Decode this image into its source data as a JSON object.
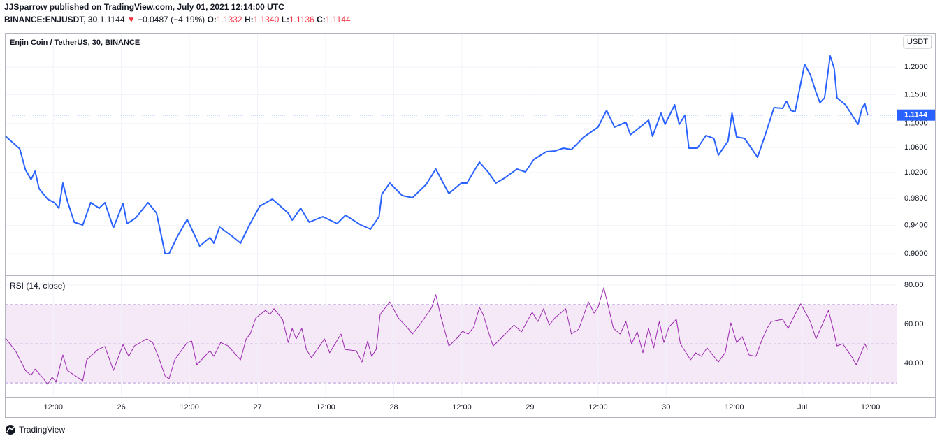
{
  "header": {
    "line1": "JJSparrow published on TradingView.com, July 01, 2021 12:14:00 UTC",
    "symbol": "BINANCE:ENJUSDT, 30",
    "last": "1.1144",
    "arrow": "▼",
    "change": "−0.0487 (−4.19%)",
    "ohlc": [
      {
        "label": "O:",
        "value": "1.1332"
      },
      {
        "label": "H:",
        "value": "1.1340"
      },
      {
        "label": "L:",
        "value": "1.1136"
      },
      {
        "label": "C:",
        "value": "1.1144"
      }
    ]
  },
  "footer": {
    "brand": "TradingView"
  },
  "chart_data": [
    {
      "type": "line",
      "title": "Enjin Coin / TetherUS, 30, BINANCE",
      "currency": "USDT",
      "color": "#2962ff",
      "log": true,
      "grid": true,
      "last": 1.1144,
      "x": [
        3.6,
        6.1,
        7.1,
        8.1,
        8.8,
        9.5,
        11.0,
        12.2,
        13.0,
        13.7,
        14.5,
        15.7,
        17.2,
        18.6,
        20.1,
        21.1,
        22.6,
        24.3,
        25.0,
        26.5,
        28.7,
        30.2,
        31.7,
        32.4,
        33.9,
        35.6,
        37.8,
        39.6,
        40.3,
        41.3,
        43.5,
        45.0,
        46.7,
        48.4,
        50.6,
        51.6,
        53.4,
        54.1,
        55.6,
        57.1,
        59.5,
        62.0,
        63.5,
        66.2,
        67.9,
        69.4,
        69.9,
        71.3,
        73.5,
        75.3,
        77.7,
        79.4,
        81.7,
        83.9,
        84.9,
        87.1,
        88.6,
        90.0,
        91.5,
        93.7,
        95.2,
        96.7,
        98.9,
        100.4,
        101.9,
        103.3,
        105.5,
        108.0,
        109.5,
        110.9,
        112.9,
        113.7,
        115.4,
        116.9,
        117.6,
        119.1,
        119.8,
        121.5,
        122.3,
        123.3,
        124.0,
        125.5,
        127.0,
        128.4,
        129.2,
        130.9,
        131.6,
        132.4,
        133.8,
        136.1,
        137.5,
        139.0,
        140.5,
        141.2,
        142.0,
        142.7,
        144.4,
        145.4,
        146.4,
        147.1,
        147.9,
        148.9,
        149.6,
        150.1,
        151.6,
        153.8,
        154.5,
        155.0,
        155.5
      ],
      "values": [
        1.0786,
        1.0579,
        1.0242,
        1.0089,
        1.022,
        0.9949,
        0.9789,
        0.9737,
        0.9653,
        1.0035,
        0.9758,
        0.9447,
        0.9407,
        0.9737,
        0.9653,
        0.9737,
        0.9366,
        0.9726,
        0.9427,
        0.9508,
        0.9737,
        0.9581,
        0.9,
        0.9,
        0.9246,
        0.9488,
        0.9107,
        0.9226,
        0.9147,
        0.9376,
        0.9246,
        0.9147,
        0.9427,
        0.9684,
        0.9789,
        0.9716,
        0.9581,
        0.9478,
        0.9653,
        0.9447,
        0.9529,
        0.9427,
        0.955,
        0.9407,
        0.9346,
        0.9529,
        0.9863,
        1.0035,
        0.9842,
        0.981,
        1.0013,
        1.0254,
        0.9874,
        1.0035,
        1.0035,
        1.0365,
        1.0209,
        1.0035,
        1.0111,
        1.0254,
        1.0209,
        1.0409,
        1.0533,
        1.0544,
        1.059,
        1.0568,
        1.0775,
        1.0938,
        1.1225,
        1.0938,
        1.1021,
        1.081,
        1.0938,
        1.1057,
        1.0786,
        1.1177,
        1.0986,
        1.1322,
        1.0986,
        1.1141,
        1.059,
        1.059,
        1.0797,
        1.0751,
        1.0477,
        1.0705,
        1.1177,
        1.0775,
        1.0751,
        1.0443,
        1.0822,
        1.1273,
        1.1261,
        1.1383,
        1.1225,
        1.1201,
        1.2052,
        1.1859,
        1.1543,
        1.1359,
        1.1444,
        1.2209,
        1.1975,
        1.1444,
        1.1322,
        1.0986,
        1.1261,
        1.1346,
        1.1144
      ],
      "xlim": [
        3.6,
        160.6
      ],
      "ylim": [
        0.8714,
        1.2637
      ],
      "yticks": [
        {
          "value": 0.9,
          "label": "0.9000"
        },
        {
          "value": 0.94,
          "label": "0.9400"
        },
        {
          "value": 0.98,
          "label": "0.9800"
        },
        {
          "value": 1.02,
          "label": "1.0200"
        },
        {
          "value": 1.06,
          "label": "1.0600"
        },
        {
          "value": 1.1,
          "label": "1.1000"
        },
        {
          "value": 1.15,
          "label": "1.1500"
        },
        {
          "value": 1.2,
          "label": "1.2000"
        }
      ]
    },
    {
      "type": "line",
      "title": "RSI (14, close)",
      "color": "#9c27b0",
      "grid": true,
      "band": [
        30,
        70
      ],
      "midline": 50,
      "x": [
        3.6,
        5.4,
        7.1,
        8.1,
        8.8,
        10.3,
        11.0,
        11.8,
        12.5,
        13.7,
        14.5,
        15.4,
        17.2,
        17.9,
        19.9,
        21.1,
        22.6,
        24.3,
        25.3,
        26.3,
        28.5,
        29.5,
        30.5,
        31.7,
        32.4,
        33.4,
        35.6,
        36.4,
        37.3,
        39.6,
        40.3,
        41.5,
        42.8,
        45.0,
        46.0,
        46.7,
        47.7,
        49.4,
        50.2,
        50.9,
        52.4,
        53.4,
        54.1,
        54.8,
        55.8,
        56.6,
        57.5,
        59.8,
        60.7,
        62.7,
        63.4,
        65.4,
        66.4,
        67.4,
        68.1,
        68.9,
        69.6,
        71.3,
        72.8,
        74.5,
        75.3,
        77.0,
        78.7,
        79.4,
        80.2,
        81.7,
        83.4,
        84.1,
        85.1,
        86.1,
        87.1,
        87.8,
        88.8,
        89.5,
        90.8,
        93.2,
        94.5,
        95.7,
        96.4,
        97.4,
        98.4,
        99.4,
        100.4,
        102.3,
        103.3,
        104.6,
        106.3,
        107.3,
        108.0,
        109.0,
        109.7,
        110.7,
        111.9,
        112.9,
        113.9,
        114.9,
        115.9,
        116.9,
        117.8,
        118.8,
        119.6,
        120.5,
        121.8,
        122.5,
        124.3,
        125.2,
        126.2,
        127.2,
        129.2,
        130.4,
        131.4,
        132.4,
        133.4,
        134.6,
        135.8,
        136.8,
        137.8,
        138.5,
        140.5,
        141.5,
        142.7,
        143.7,
        144.4,
        145.4,
        146.4,
        147.9,
        148.6,
        149.4,
        150.1,
        151.1,
        152.8,
        153.5,
        154.5,
        155.0,
        155.5
      ],
      "values": [
        52.9,
        46.1,
        36.4,
        33.9,
        37.1,
        32.1,
        29.3,
        32.9,
        30.7,
        44.3,
        36.4,
        34.6,
        31.1,
        41.8,
        47.1,
        48.6,
        36.4,
        49.6,
        43.6,
        48.9,
        52.5,
        50.7,
        43.6,
        33.6,
        32.1,
        41.8,
        50.7,
        51.4,
        39.3,
        46.4,
        43.6,
        50.7,
        48.9,
        41.8,
        52.5,
        55.0,
        63.2,
        67.1,
        65.0,
        67.9,
        62.5,
        50.7,
        57.9,
        52.5,
        57.9,
        47.1,
        42.9,
        52.5,
        45.4,
        55.0,
        47.1,
        46.4,
        40.7,
        51.4,
        43.6,
        47.1,
        65.0,
        71.4,
        63.2,
        57.9,
        55.0,
        61.4,
        68.6,
        75.0,
        65.0,
        48.9,
        53.6,
        56.4,
        55.0,
        58.6,
        68.6,
        64.6,
        55.0,
        48.9,
        52.5,
        59.6,
        56.1,
        62.5,
        66.1,
        61.4,
        67.9,
        59.6,
        63.2,
        67.9,
        55.0,
        57.5,
        71.4,
        65.7,
        68.6,
        78.6,
        70.4,
        57.9,
        55.0,
        61.4,
        50.0,
        56.1,
        45.4,
        57.9,
        47.9,
        61.4,
        50.7,
        58.6,
        62.5,
        50.0,
        41.8,
        45.4,
        43.6,
        47.9,
        40.7,
        45.4,
        60.7,
        50.7,
        53.6,
        44.3,
        43.6,
        51.4,
        57.9,
        61.4,
        62.5,
        57.9,
        65.0,
        70.4,
        66.8,
        61.4,
        52.5,
        62.5,
        67.1,
        57.9,
        48.9,
        50.0,
        42.9,
        39.3,
        46.4,
        50.0,
        47.1
      ],
      "xlim": [
        3.6,
        160.6
      ],
      "ylim": [
        22.9,
        84.6
      ],
      "yticks": [
        {
          "value": 40,
          "label": "40.00"
        },
        {
          "value": 60,
          "label": "60.00"
        },
        {
          "value": 80,
          "label": "80.00"
        }
      ],
      "xticks": [
        {
          "value": 12,
          "label": "12:00"
        },
        {
          "value": 24,
          "label": "26"
        },
        {
          "value": 36,
          "label": "12:00"
        },
        {
          "value": 48,
          "label": "27"
        },
        {
          "value": 60,
          "label": "12:00"
        },
        {
          "value": 72,
          "label": "28"
        },
        {
          "value": 84,
          "label": "12:00"
        },
        {
          "value": 96,
          "label": "29"
        },
        {
          "value": 108,
          "label": "12:00"
        },
        {
          "value": 120,
          "label": "30"
        },
        {
          "value": 132,
          "label": "12:00"
        },
        {
          "value": 144,
          "label": "Jul"
        },
        {
          "value": 156,
          "label": "12:00"
        }
      ]
    }
  ]
}
